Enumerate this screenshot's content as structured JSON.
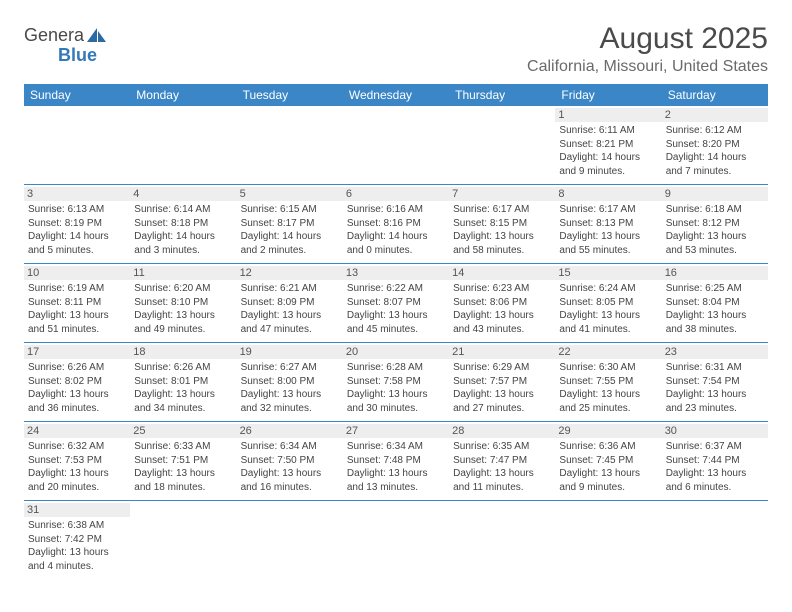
{
  "branding": {
    "logo_text_a": "Genera",
    "logo_text_b": "Blue",
    "logo_sail_color": "#2d6aa3",
    "header_bg": "#3b86c6",
    "border_color": "#3b86c6",
    "daynum_bg": "#eeeeee",
    "page_bg": "#ffffff",
    "text_color": "#333333"
  },
  "title": {
    "month": "August 2025",
    "location": "California, Missouri, United States"
  },
  "day_headers": [
    "Sunday",
    "Monday",
    "Tuesday",
    "Wednesday",
    "Thursday",
    "Friday",
    "Saturday"
  ],
  "layout": {
    "columns": 7,
    "rows": 6,
    "first_weekday_index": 5,
    "days_in_month": 31,
    "font_size_header": 12,
    "font_size_daynum": 11,
    "font_size_detail": 10
  },
  "days": {
    "1": {
      "sunrise": "6:11 AM",
      "sunset": "8:21 PM",
      "daylight": "14 hours and 9 minutes."
    },
    "2": {
      "sunrise": "6:12 AM",
      "sunset": "8:20 PM",
      "daylight": "14 hours and 7 minutes."
    },
    "3": {
      "sunrise": "6:13 AM",
      "sunset": "8:19 PM",
      "daylight": "14 hours and 5 minutes."
    },
    "4": {
      "sunrise": "6:14 AM",
      "sunset": "8:18 PM",
      "daylight": "14 hours and 3 minutes."
    },
    "5": {
      "sunrise": "6:15 AM",
      "sunset": "8:17 PM",
      "daylight": "14 hours and 2 minutes."
    },
    "6": {
      "sunrise": "6:16 AM",
      "sunset": "8:16 PM",
      "daylight": "14 hours and 0 minutes."
    },
    "7": {
      "sunrise": "6:17 AM",
      "sunset": "8:15 PM",
      "daylight": "13 hours and 58 minutes."
    },
    "8": {
      "sunrise": "6:17 AM",
      "sunset": "8:13 PM",
      "daylight": "13 hours and 55 minutes."
    },
    "9": {
      "sunrise": "6:18 AM",
      "sunset": "8:12 PM",
      "daylight": "13 hours and 53 minutes."
    },
    "10": {
      "sunrise": "6:19 AM",
      "sunset": "8:11 PM",
      "daylight": "13 hours and 51 minutes."
    },
    "11": {
      "sunrise": "6:20 AM",
      "sunset": "8:10 PM",
      "daylight": "13 hours and 49 minutes."
    },
    "12": {
      "sunrise": "6:21 AM",
      "sunset": "8:09 PM",
      "daylight": "13 hours and 47 minutes."
    },
    "13": {
      "sunrise": "6:22 AM",
      "sunset": "8:07 PM",
      "daylight": "13 hours and 45 minutes."
    },
    "14": {
      "sunrise": "6:23 AM",
      "sunset": "8:06 PM",
      "daylight": "13 hours and 43 minutes."
    },
    "15": {
      "sunrise": "6:24 AM",
      "sunset": "8:05 PM",
      "daylight": "13 hours and 41 minutes."
    },
    "16": {
      "sunrise": "6:25 AM",
      "sunset": "8:04 PM",
      "daylight": "13 hours and 38 minutes."
    },
    "17": {
      "sunrise": "6:26 AM",
      "sunset": "8:02 PM",
      "daylight": "13 hours and 36 minutes."
    },
    "18": {
      "sunrise": "6:26 AM",
      "sunset": "8:01 PM",
      "daylight": "13 hours and 34 minutes."
    },
    "19": {
      "sunrise": "6:27 AM",
      "sunset": "8:00 PM",
      "daylight": "13 hours and 32 minutes."
    },
    "20": {
      "sunrise": "6:28 AM",
      "sunset": "7:58 PM",
      "daylight": "13 hours and 30 minutes."
    },
    "21": {
      "sunrise": "6:29 AM",
      "sunset": "7:57 PM",
      "daylight": "13 hours and 27 minutes."
    },
    "22": {
      "sunrise": "6:30 AM",
      "sunset": "7:55 PM",
      "daylight": "13 hours and 25 minutes."
    },
    "23": {
      "sunrise": "6:31 AM",
      "sunset": "7:54 PM",
      "daylight": "13 hours and 23 minutes."
    },
    "24": {
      "sunrise": "6:32 AM",
      "sunset": "7:53 PM",
      "daylight": "13 hours and 20 minutes."
    },
    "25": {
      "sunrise": "6:33 AM",
      "sunset": "7:51 PM",
      "daylight": "13 hours and 18 minutes."
    },
    "26": {
      "sunrise": "6:34 AM",
      "sunset": "7:50 PM",
      "daylight": "13 hours and 16 minutes."
    },
    "27": {
      "sunrise": "6:34 AM",
      "sunset": "7:48 PM",
      "daylight": "13 hours and 13 minutes."
    },
    "28": {
      "sunrise": "6:35 AM",
      "sunset": "7:47 PM",
      "daylight": "13 hours and 11 minutes."
    },
    "29": {
      "sunrise": "6:36 AM",
      "sunset": "7:45 PM",
      "daylight": "13 hours and 9 minutes."
    },
    "30": {
      "sunrise": "6:37 AM",
      "sunset": "7:44 PM",
      "daylight": "13 hours and 6 minutes."
    },
    "31": {
      "sunrise": "6:38 AM",
      "sunset": "7:42 PM",
      "daylight": "13 hours and 4 minutes."
    }
  },
  "labels": {
    "sunrise": "Sunrise:",
    "sunset": "Sunset:",
    "daylight": "Daylight:"
  }
}
